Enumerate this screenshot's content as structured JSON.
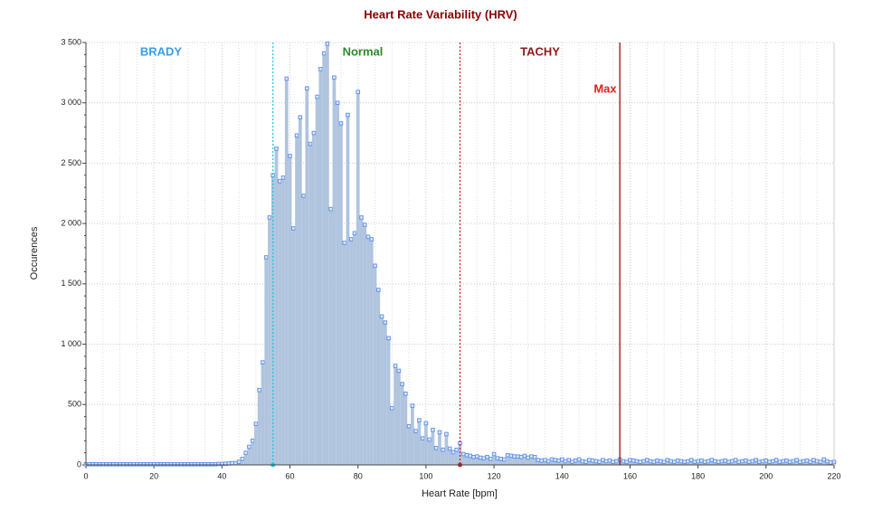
{
  "chart_data": {
    "type": "bar",
    "title": "Heart Rate Variability (HRV)",
    "x_label": "Heart Rate [bpm]",
    "y_label": "Occurences",
    "x": [
      0,
      1,
      2,
      3,
      4,
      5,
      6,
      7,
      8,
      9,
      10,
      11,
      12,
      13,
      14,
      15,
      16,
      17,
      18,
      19,
      20,
      21,
      22,
      23,
      24,
      25,
      26,
      27,
      28,
      29,
      30,
      31,
      32,
      33,
      34,
      35,
      36,
      37,
      38,
      39,
      40,
      41,
      42,
      43,
      44,
      45,
      46,
      47,
      48,
      49,
      50,
      51,
      52,
      53,
      54,
      55,
      56,
      57,
      58,
      59,
      60,
      61,
      62,
      63,
      64,
      65,
      66,
      67,
      68,
      69,
      70,
      71,
      72,
      73,
      74,
      75,
      76,
      77,
      78,
      79,
      80,
      81,
      82,
      83,
      84,
      85,
      86,
      87,
      88,
      89,
      90,
      91,
      92,
      93,
      94,
      95,
      96,
      97,
      98,
      99,
      100,
      101,
      102,
      103,
      104,
      105,
      106,
      107,
      108,
      109,
      110,
      111,
      112,
      113,
      114,
      115,
      116,
      117,
      118,
      119,
      120,
      121,
      122,
      123,
      124,
      125,
      126,
      127,
      128,
      129,
      130,
      131,
      132,
      133,
      134,
      135,
      136,
      137,
      138,
      139,
      140,
      141,
      142,
      143,
      144,
      145,
      146,
      147,
      148,
      149,
      150,
      151,
      152,
      153,
      154,
      155,
      156,
      157,
      158,
      159,
      160,
      161,
      162,
      163,
      164,
      165,
      166,
      167,
      168,
      169,
      170,
      171,
      172,
      173,
      174,
      175,
      176,
      177,
      178,
      179,
      180,
      181,
      182,
      183,
      184,
      185,
      186,
      187,
      188,
      189,
      190,
      191,
      192,
      193,
      194,
      195,
      196,
      197,
      198,
      199,
      200,
      201,
      202,
      203,
      204,
      205,
      206,
      207,
      208,
      209,
      210,
      211,
      212,
      213,
      214,
      215,
      216,
      217,
      218,
      219,
      220
    ],
    "values": [
      5,
      5,
      5,
      5,
      5,
      5,
      5,
      5,
      5,
      5,
      5,
      5,
      5,
      5,
      5,
      5,
      5,
      5,
      5,
      5,
      5,
      5,
      5,
      5,
      5,
      5,
      5,
      5,
      5,
      5,
      5,
      5,
      5,
      5,
      5,
      5,
      5,
      5,
      5,
      8,
      8,
      10,
      12,
      15,
      15,
      25,
      50,
      100,
      150,
      200,
      340,
      620,
      850,
      1720,
      2050,
      2400,
      2620,
      2350,
      2380,
      3200,
      2560,
      1960,
      2730,
      2880,
      2230,
      3120,
      2660,
      2750,
      3050,
      3280,
      3410,
      3490,
      2120,
      3210,
      3000,
      2830,
      1840,
      2900,
      1870,
      1920,
      3090,
      2050,
      1990,
      1890,
      1870,
      1650,
      1450,
      1230,
      1180,
      1050,
      470,
      820,
      780,
      670,
      590,
      320,
      490,
      280,
      370,
      220,
      345,
      210,
      290,
      140,
      270,
      125,
      255,
      135,
      105,
      125,
      180,
      90,
      80,
      75,
      65,
      70,
      60,
      55,
      65,
      50,
      90,
      55,
      50,
      45,
      80,
      75,
      70,
      70,
      65,
      75,
      60,
      70,
      65,
      40,
      35,
      40,
      30,
      45,
      40,
      35,
      45,
      30,
      40,
      25,
      35,
      45,
      30,
      25,
      40,
      35,
      30,
      25,
      40,
      30,
      35,
      25,
      30,
      45,
      30,
      25,
      40,
      35,
      30,
      25,
      30,
      40,
      30,
      25,
      35,
      30,
      25,
      40,
      30,
      25,
      35,
      30,
      25,
      30,
      40,
      25,
      30,
      35,
      25,
      30,
      40,
      30,
      25,
      30,
      35,
      25,
      30,
      40,
      25,
      30,
      35,
      25,
      30,
      40,
      25,
      30,
      35,
      25,
      30,
      40,
      25,
      30,
      35,
      25,
      30,
      40,
      25,
      30,
      35,
      25,
      40,
      30,
      25,
      45,
      30,
      20,
      25
    ],
    "color": "#b0c4de",
    "marker_color": "#6495ed",
    "xlim": [
      0,
      220
    ],
    "xticks": [
      0,
      20,
      40,
      60,
      80,
      100,
      120,
      140,
      160,
      180,
      200,
      220
    ],
    "ylim": [
      0,
      3500
    ],
    "yticks": [
      0,
      500,
      {
        "value": 1000,
        "label": "1 000"
      },
      {
        "value": 1500,
        "label": "1 500"
      },
      {
        "value": 2000,
        "label": "2 000"
      },
      {
        "value": 2500,
        "label": "2 500"
      },
      {
        "value": 3000,
        "label": "3 000"
      },
      {
        "value": 3500,
        "label": "3 500"
      }
    ],
    "grid": true,
    "vlines": [
      {
        "x": 55,
        "color": "#1ec8e0",
        "style": "dotted"
      },
      {
        "x": 110,
        "color": "#d02020",
        "style": "dotted"
      },
      {
        "x": 157,
        "color": "#8b0000",
        "style": "solid"
      }
    ],
    "annotations": [
      {
        "text": "BRADY",
        "color": "#3a9ee8"
      },
      {
        "text": "Normal",
        "color": "#2e8b2e"
      },
      {
        "text": "TACHY",
        "color": "#8b1a1a"
      },
      {
        "text": "Max",
        "color": "#e02020"
      }
    ]
  }
}
